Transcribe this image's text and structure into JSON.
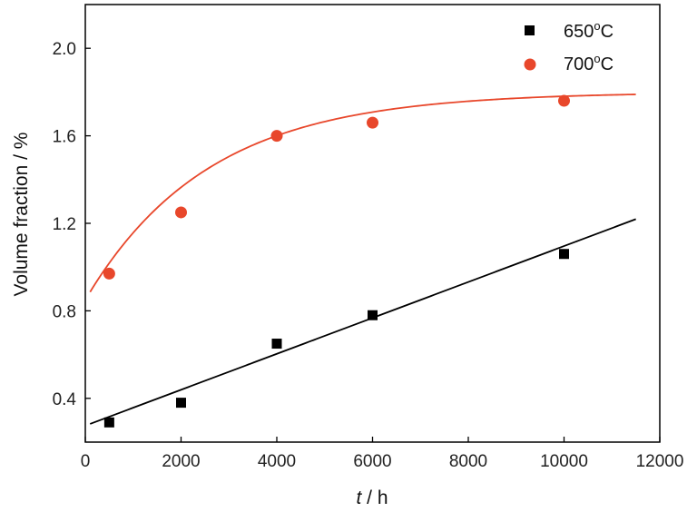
{
  "chart_data": {
    "type": "scatter",
    "title": "",
    "xlabel_italic": "t",
    "xlabel_rest": " / h",
    "ylabel": "Volume fraction / %",
    "xlim": [
      0,
      12000
    ],
    "ylim": [
      0.2,
      2.2
    ],
    "xticks": [
      0,
      2000,
      4000,
      6000,
      8000,
      10000,
      12000
    ],
    "yticks": [
      0.4,
      0.8,
      1.2,
      1.6,
      2.0
    ],
    "xtick_labels": [
      "0",
      "2000",
      "4000",
      "6000",
      "8000",
      "10000",
      "12000"
    ],
    "ytick_labels": [
      "0.4",
      "0.8",
      "1.2",
      "1.6",
      "2.0"
    ],
    "grid": false,
    "legend_position": "top-right",
    "series": [
      {
        "name": "650",
        "name_sup": "o",
        "name_suffix": "C",
        "marker": "square",
        "color": "#000000",
        "x": [
          500,
          2000,
          4000,
          6000,
          10000
        ],
        "y": [
          0.29,
          0.38,
          0.65,
          0.78,
          1.06
        ],
        "fit": {
          "type": "linear",
          "x_range": [
            100,
            11500
          ],
          "intercept": 0.275,
          "slope": 8.21e-05
        }
      },
      {
        "name": "700",
        "name_sup": "o",
        "name_suffix": "C",
        "marker": "circle",
        "color": "#e8472b",
        "x": [
          500,
          2000,
          4000,
          6000,
          10000
        ],
        "y": [
          0.97,
          1.25,
          1.6,
          1.66,
          1.76
        ],
        "fit": {
          "type": "exponential_saturation",
          "x_range": [
            100,
            11500
          ],
          "asymptote": 1.8,
          "y0": 0.85,
          "rate": 0.00039
        }
      }
    ]
  }
}
